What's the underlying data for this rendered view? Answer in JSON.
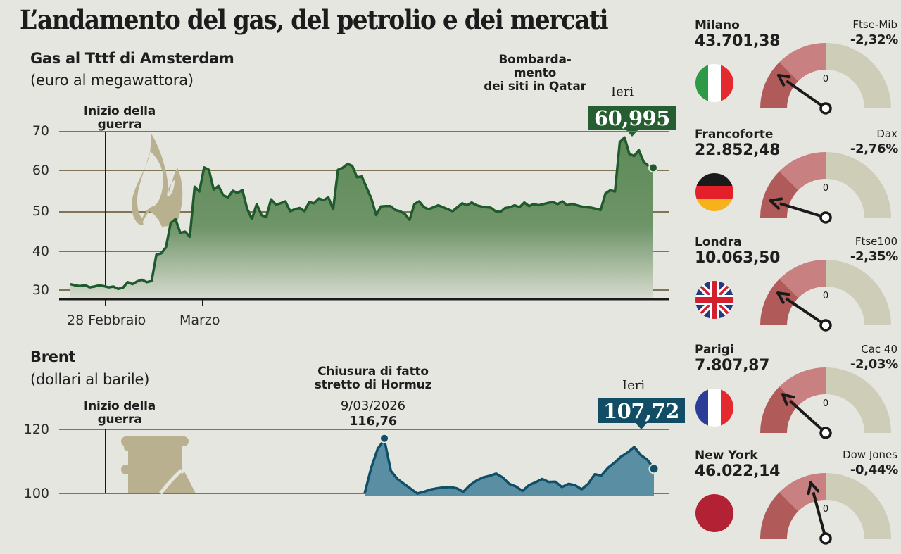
{
  "page": {
    "title": "L’andamento del gas, del petrolio e dei mercati"
  },
  "colors": {
    "background": "#e6e6e0",
    "gas_line": "#1f5a2c",
    "gas_fill": "#5e8a57",
    "gas_badge": "#275e31",
    "brent_line": "#0f4f67",
    "brent_fill": "#5a8ea3",
    "brent_badge": "#114e66",
    "grid": "#7f7555",
    "icon": "#b8b08e",
    "gauge_dark_red": "#b05a5a",
    "gauge_light_red": "#c88080",
    "gauge_neutral": "#cdcdb8"
  },
  "gas_chart": {
    "title": "Gas al Tttf di Amsterdam",
    "unit": "(euro al megawattora)",
    "annotation_war": [
      "Inizio della",
      "guerra"
    ],
    "annotation_qatar": [
      "Bombarda-",
      "mento",
      "dei siti in Qatar"
    ],
    "ieri_label": "Ieri",
    "ieri_value": "60,995",
    "y_ticks": [
      "70",
      "60",
      "50",
      "40",
      "30"
    ],
    "x_ticks": [
      "28 Febbraio",
      "Marzo"
    ],
    "icon": "flame-icon"
  },
  "brent_chart": {
    "title": "Brent",
    "unit": "(dollari al barile)",
    "annotation_war": [
      "Inizio della",
      "guerra"
    ],
    "annotation_hormuz": [
      "Chiusura di fatto",
      "stretto di Hormuz"
    ],
    "hormuz_date": "9/03/2026",
    "hormuz_value": "116,76",
    "ieri_label": "Ieri",
    "ieri_value": "107,72",
    "y_ticks": [
      "120",
      "100"
    ],
    "icon": "oil-pump-icon"
  },
  "markets": [
    {
      "city": "Milano",
      "value": "43.701,38",
      "index": "Ftse-Mib",
      "change": "-2,32%",
      "flag": "italy-flag",
      "gauge_zero": "0",
      "needle_deg": 145
    },
    {
      "city": "Francoforte",
      "value": "22.852,48",
      "index": "Dax",
      "change": "-2,76%",
      "flag": "germany-flag",
      "gauge_zero": "0",
      "needle_deg": 163
    },
    {
      "city": "Londra",
      "value": "10.063,50",
      "index": "Ftse100",
      "change": "-2,35%",
      "flag": "uk-flag",
      "gauge_zero": "0",
      "needle_deg": 146
    },
    {
      "city": "Parigi",
      "value": "7.807,87",
      "index": "Cac 40",
      "change": "-2,03%",
      "flag": "france-flag",
      "gauge_zero": "0",
      "needle_deg": 138
    },
    {
      "city": "New York",
      "value": "46.022,14",
      "index": "Dow Jones",
      "change": "-0,44%",
      "flag": "usa-flag",
      "gauge_zero": "0",
      "needle_deg": 105
    }
  ],
  "chart_data": [
    {
      "type": "area",
      "title": "Gas al Tttf di Amsterdam",
      "ylabel": "euro al megawattora",
      "xlabel": "",
      "ylim": [
        27,
        72
      ],
      "grid": true,
      "y_ticks": [
        30,
        40,
        50,
        60,
        70
      ],
      "x_tick_labels": [
        "28 Febbraio",
        "Marzo"
      ],
      "annotations": [
        {
          "text": "Inizio della guerra",
          "at": "28 Febbraio"
        },
        {
          "text": "Bombardamento dei siti in Qatar",
          "value": 68.5
        },
        {
          "text": "Ieri",
          "value": 60.995
        }
      ],
      "series": [
        {
          "name": "TTF Gas",
          "values": [
            31.5,
            31.2,
            31.0,
            31.3,
            30.7,
            30.9,
            31.2,
            31.0,
            30.7,
            30.9,
            30.3,
            30.6,
            32.0,
            31.5,
            32.2,
            32.6,
            32.0,
            32.3,
            39.0,
            39.3,
            40.8,
            47.0,
            48.0,
            44.5,
            44.8,
            43.5,
            56.2,
            55.0,
            61.1,
            60.5,
            55.5,
            56.4,
            54.0,
            53.5,
            55.2,
            54.6,
            55.4,
            50.6,
            48.0,
            51.8,
            49.0,
            48.5,
            53.0,
            51.7,
            52.0,
            52.5,
            50.0,
            50.5,
            50.8,
            50.0,
            52.3,
            52.0,
            53.2,
            52.8,
            53.5,
            50.5,
            60.5,
            61.0,
            62.0,
            61.5,
            58.6,
            58.8,
            56.0,
            53.2,
            49.0,
            51.2,
            51.3,
            51.3,
            50.3,
            50.0,
            49.3,
            47.8,
            51.8,
            52.5,
            51.0,
            50.5,
            51.0,
            51.5,
            51.0,
            50.5,
            50.0,
            51.0,
            52.0,
            51.5,
            52.2,
            51.5,
            51.2,
            51.0,
            50.9,
            50.0,
            49.8,
            50.8,
            51.0,
            51.5,
            51.0,
            52.2,
            51.3,
            51.8,
            51.5,
            51.8,
            52.1,
            52.3,
            51.8,
            52.5,
            51.5,
            51.9,
            51.5,
            51.2,
            51.0,
            50.9,
            50.6,
            50.3,
            54.5,
            55.3,
            55.0,
            67.5,
            68.7,
            64.5,
            64.0,
            65.5,
            62.5,
            61.5,
            60.995
          ]
        }
      ]
    },
    {
      "type": "area",
      "title": "Brent",
      "ylabel": "dollari al barile",
      "xlabel": "",
      "ylim": [
        100,
        122
      ],
      "grid": true,
      "y_ticks": [
        100,
        120
      ],
      "annotations": [
        {
          "text": "Inizio della guerra"
        },
        {
          "text": "Chiusura di fatto stretto di Hormuz",
          "date": "9/03/2026",
          "value": 116.76
        },
        {
          "text": "Ieri",
          "value": 107.72
        }
      ],
      "series": [
        {
          "name": "Brent",
          "values": [
            100.0,
            108.0,
            114.0,
            116.76,
            107.0,
            104.5,
            103.0,
            101.5,
            100.0,
            100.5,
            101.2,
            101.6,
            101.9,
            102.0,
            101.6,
            100.5,
            102.6,
            104.0,
            105.0,
            105.5,
            106.2,
            105.0,
            103.0,
            102.2,
            100.8,
            102.6,
            103.5,
            104.5,
            103.6,
            103.7,
            102.0,
            103.0,
            102.6,
            101.3,
            103.0,
            106.0,
            105.6,
            108.0,
            109.6,
            111.5,
            112.8,
            114.5,
            112.0,
            110.5,
            107.72
          ]
        }
      ]
    }
  ]
}
